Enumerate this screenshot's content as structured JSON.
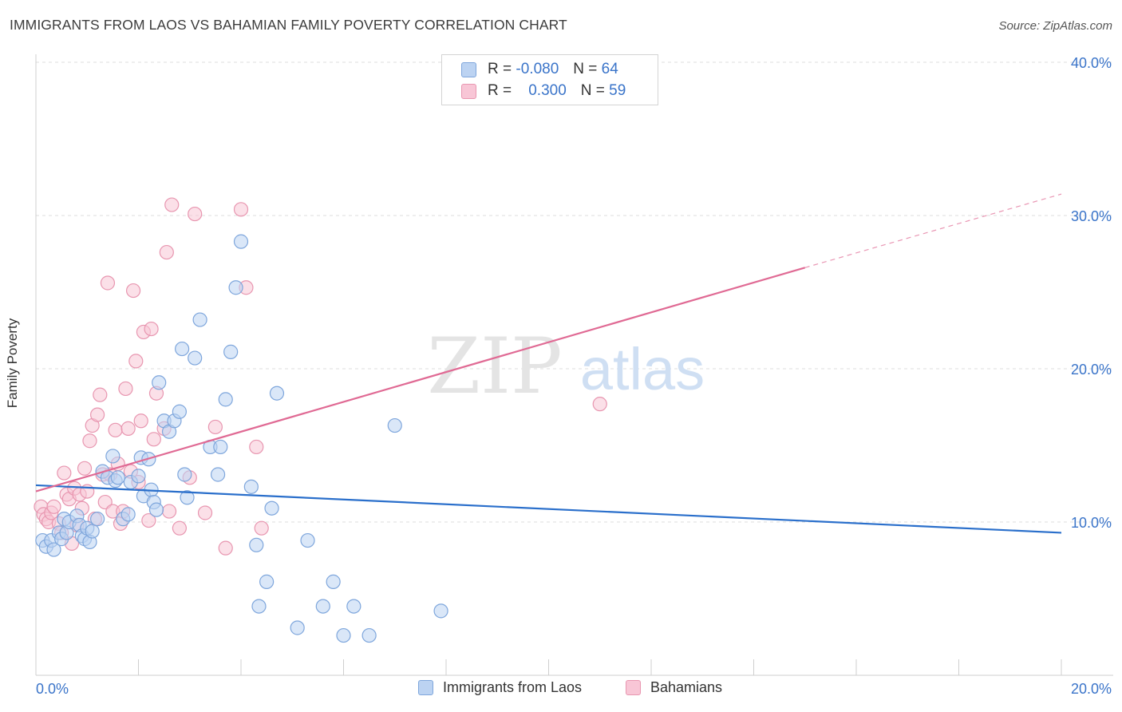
{
  "header": {
    "title": "IMMIGRANTS FROM LAOS VS BAHAMIAN FAMILY POVERTY CORRELATION CHART",
    "source": "Source: ZipAtlas.com"
  },
  "watermark": {
    "zip": "ZIP",
    "atlas": "atlas"
  },
  "legend": {
    "rows": [
      {
        "r_label": "R =",
        "r_value": "-0.080",
        "n_label": "N =",
        "n_value": "64"
      },
      {
        "r_label": "R =",
        "r_value": "0.300",
        "n_label": "N =",
        "n_value": "59"
      }
    ]
  },
  "bottom_legend": {
    "laos": "Immigrants from Laos",
    "bahamians": "Bahamians"
  },
  "colors": {
    "laos_fill": "#bcd3f2",
    "laos_stroke": "#7ea6dc",
    "laos_line": "#2a6fcb",
    "bah_fill": "#f8c6d6",
    "bah_stroke": "#e896b0",
    "bah_line": "#e06a94",
    "tick_label": "#3a74c9",
    "grid": "#dcdcdc"
  },
  "chart_data": {
    "type": "scatter",
    "title": "IMMIGRANTS FROM LAOS VS BAHAMIAN FAMILY POVERTY CORRELATION CHART",
    "xlabel": "",
    "ylabel": "Family Poverty",
    "xlim": [
      0,
      20
    ],
    "ylim": [
      0,
      40
    ],
    "x_ticks": [
      "0.0%",
      "20.0%"
    ],
    "y_ticks": [
      {
        "value": 10,
        "label": "10.0%"
      },
      {
        "value": 20,
        "label": "20.0%"
      },
      {
        "value": 30,
        "label": "30.0%"
      },
      {
        "value": 40,
        "label": "40.0%"
      }
    ],
    "grid": true,
    "series": [
      {
        "name": "Immigrants from Laos",
        "r": -0.08,
        "n": 64,
        "trend": {
          "x0": 0,
          "y0": 12.4,
          "x1": 20,
          "y1": 9.3
        },
        "points": [
          [
            0.13,
            8.8
          ],
          [
            0.2,
            8.4
          ],
          [
            0.3,
            8.8
          ],
          [
            0.35,
            8.2
          ],
          [
            0.45,
            9.3
          ],
          [
            0.5,
            8.9
          ],
          [
            0.55,
            10.2
          ],
          [
            0.6,
            9.3
          ],
          [
            0.65,
            10.0
          ],
          [
            0.8,
            10.4
          ],
          [
            0.85,
            9.8
          ],
          [
            0.9,
            9.1
          ],
          [
            0.95,
            8.9
          ],
          [
            1.0,
            9.6
          ],
          [
            1.05,
            8.7
          ],
          [
            1.1,
            9.4
          ],
          [
            1.2,
            10.2
          ],
          [
            1.3,
            13.3
          ],
          [
            1.4,
            12.9
          ],
          [
            1.5,
            14.3
          ],
          [
            1.55,
            12.7
          ],
          [
            1.6,
            12.9
          ],
          [
            1.7,
            10.2
          ],
          [
            1.8,
            10.5
          ],
          [
            1.85,
            12.6
          ],
          [
            2.0,
            13.0
          ],
          [
            2.05,
            14.2
          ],
          [
            2.1,
            11.7
          ],
          [
            2.2,
            14.1
          ],
          [
            2.25,
            12.1
          ],
          [
            2.3,
            11.3
          ],
          [
            2.35,
            10.8
          ],
          [
            2.4,
            19.1
          ],
          [
            2.5,
            16.6
          ],
          [
            2.6,
            15.9
          ],
          [
            2.7,
            16.6
          ],
          [
            2.8,
            17.2
          ],
          [
            2.85,
            21.3
          ],
          [
            2.9,
            13.1
          ],
          [
            2.95,
            11.6
          ],
          [
            3.1,
            20.7
          ],
          [
            3.2,
            23.2
          ],
          [
            3.4,
            14.9
          ],
          [
            3.55,
            13.1
          ],
          [
            3.6,
            14.9
          ],
          [
            3.7,
            18.0
          ],
          [
            3.8,
            21.1
          ],
          [
            3.9,
            25.3
          ],
          [
            4.0,
            28.3
          ],
          [
            4.2,
            12.3
          ],
          [
            4.3,
            8.5
          ],
          [
            4.35,
            4.5
          ],
          [
            4.5,
            6.1
          ],
          [
            4.6,
            10.9
          ],
          [
            4.7,
            18.4
          ],
          [
            5.1,
            3.1
          ],
          [
            5.3,
            8.8
          ],
          [
            5.6,
            4.5
          ],
          [
            5.8,
            6.1
          ],
          [
            6.0,
            2.6
          ],
          [
            6.2,
            4.5
          ],
          [
            6.5,
            2.6
          ],
          [
            7.0,
            16.3
          ],
          [
            7.9,
            4.2
          ]
        ]
      },
      {
        "name": "Bahamians",
        "r": 0.3,
        "n": 59,
        "trend": {
          "x0": 0,
          "y0": 12.0,
          "x1": 15.0,
          "y1": 26.6,
          "dash_x1": 20,
          "dash_y1": 31.4
        },
        "points": [
          [
            0.1,
            11.0
          ],
          [
            0.15,
            10.5
          ],
          [
            0.2,
            10.2
          ],
          [
            0.25,
            10.0
          ],
          [
            0.3,
            10.6
          ],
          [
            0.35,
            11.0
          ],
          [
            0.45,
            9.9
          ],
          [
            0.5,
            9.3
          ],
          [
            0.55,
            13.2
          ],
          [
            0.6,
            11.8
          ],
          [
            0.65,
            11.5
          ],
          [
            0.7,
            8.6
          ],
          [
            0.75,
            12.2
          ],
          [
            0.8,
            9.8
          ],
          [
            0.85,
            11.8
          ],
          [
            0.9,
            10.9
          ],
          [
            0.95,
            13.5
          ],
          [
            1.0,
            12.0
          ],
          [
            1.05,
            15.3
          ],
          [
            1.1,
            16.3
          ],
          [
            1.15,
            10.2
          ],
          [
            1.2,
            17.0
          ],
          [
            1.25,
            18.3
          ],
          [
            1.3,
            13.1
          ],
          [
            1.35,
            11.3
          ],
          [
            1.4,
            25.6
          ],
          [
            1.45,
            13.1
          ],
          [
            1.5,
            10.7
          ],
          [
            1.55,
            16.0
          ],
          [
            1.6,
            13.8
          ],
          [
            1.65,
            9.9
          ],
          [
            1.7,
            10.7
          ],
          [
            1.75,
            18.7
          ],
          [
            1.8,
            16.1
          ],
          [
            1.85,
            13.3
          ],
          [
            1.9,
            25.1
          ],
          [
            1.95,
            20.5
          ],
          [
            2.0,
            12.6
          ],
          [
            2.05,
            16.6
          ],
          [
            2.1,
            22.4
          ],
          [
            2.2,
            10.1
          ],
          [
            2.25,
            22.6
          ],
          [
            2.3,
            15.4
          ],
          [
            2.35,
            18.4
          ],
          [
            2.5,
            16.1
          ],
          [
            2.55,
            27.6
          ],
          [
            2.6,
            10.7
          ],
          [
            2.65,
            30.7
          ],
          [
            2.8,
            9.6
          ],
          [
            3.0,
            12.9
          ],
          [
            3.1,
            30.1
          ],
          [
            3.3,
            10.6
          ],
          [
            3.5,
            16.2
          ],
          [
            3.7,
            8.3
          ],
          [
            4.0,
            30.4
          ],
          [
            4.1,
            25.3
          ],
          [
            4.3,
            14.9
          ],
          [
            4.4,
            9.6
          ],
          [
            11.0,
            17.7
          ]
        ]
      }
    ]
  }
}
